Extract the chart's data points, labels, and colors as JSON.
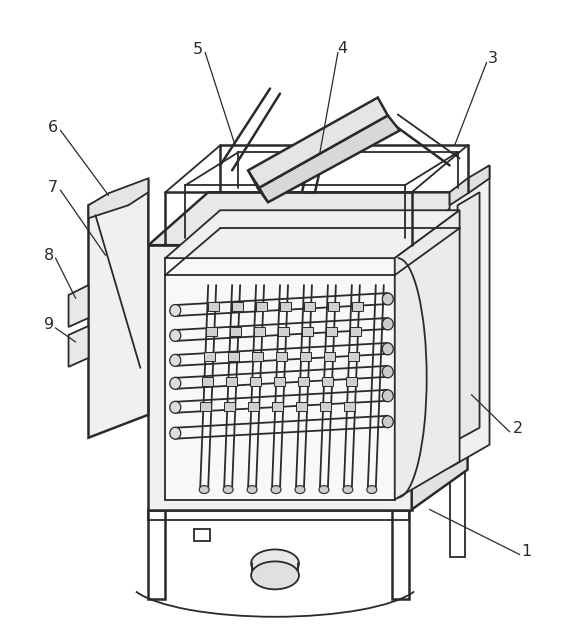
{
  "background_color": "#ffffff",
  "line_color": "#2a2a2a",
  "figsize": [
    5.82,
    6.26
  ],
  "dpi": 100
}
